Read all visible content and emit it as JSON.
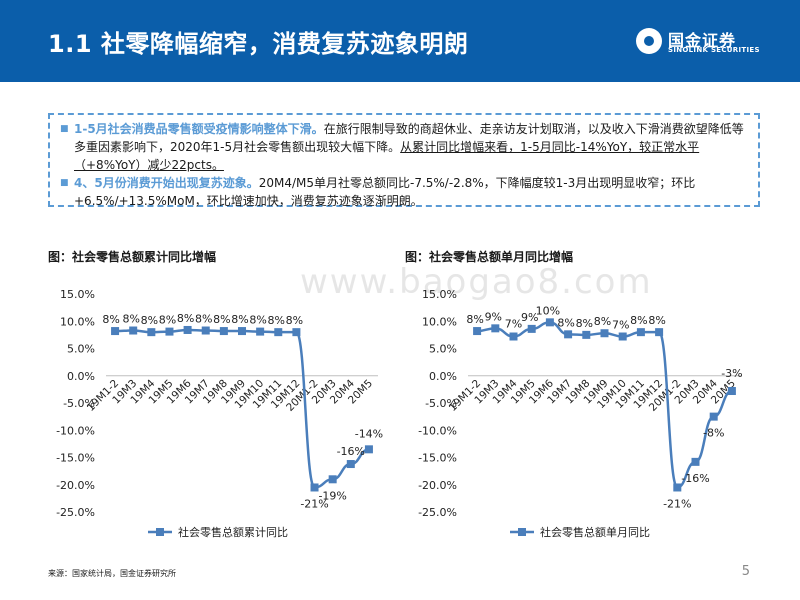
{
  "header": {
    "title": "1.1 社零降幅缩窄，消费复苏迹象明朗",
    "logo_cn": "国金证券",
    "logo_en": "SINOLINK SECURITIES",
    "bg_color": "#0b5eaa"
  },
  "summary": {
    "p1_hl": "1-5月社会消费品零售额受疫情影响整体下滑。",
    "p1_text": "在旅行限制导致的商超休业、走亲访友计划取消，以及收入下滑消费欲望降低等多重因素影响下，2020年1-5月社会零售额出现较大幅下降。",
    "p1_ul": "从累计同比增幅来看，1-5月同比-14%YoY，较正常水平（+8%YoY）减少22pcts。",
    "p2_hl": "4、5月份消费开始出现复苏迹象。",
    "p2_text": "20M4/M5单月社零总额同比-7.5%/-2.8%，下降幅度较1-3月出现明显收窄；环比+6.5%/+13.5%MoM，环比增速加快，消费复苏迹象逐渐明朗。"
  },
  "watermark": "www.baogao8.com",
  "footer": {
    "source": "来源：国家统计局，国金证券研究所",
    "page": "5"
  },
  "chart_data": [
    {
      "type": "line",
      "title": "图：社会零售总额累计同比增幅",
      "categories": [
        "19M1-2",
        "19M3",
        "19M4",
        "19M5",
        "19M6",
        "19M7",
        "19M8",
        "19M9",
        "19M10",
        "19M11",
        "19M12",
        "20M1-2",
        "20M3",
        "20M4",
        "20M5"
      ],
      "series": [
        {
          "name": "社会零售总额累计同比",
          "values": [
            8.2,
            8.3,
            8.0,
            8.1,
            8.4,
            8.3,
            8.2,
            8.2,
            8.1,
            8.0,
            8.0,
            -20.5,
            -19.0,
            -16.2,
            -13.5
          ]
        }
      ],
      "data_labels": [
        "8%",
        "8%",
        "8%",
        "8%",
        "8%",
        "8%",
        "8%",
        "8%",
        "8%",
        "8%",
        "8%",
        "-21%",
        "-19%",
        "-16%",
        "-14%"
      ],
      "ylim": [
        -25,
        15
      ],
      "yticks": [
        "15.0%",
        "10.0%",
        "5.0%",
        "0.0%",
        "-5.0%",
        "-10.0%",
        "-15.0%",
        "-20.0%",
        "-25.0%"
      ],
      "grid": false,
      "legend": "bottom",
      "color": "#4a7ebb"
    },
    {
      "type": "line",
      "title": "图：社会零售总额单月同比增幅",
      "categories": [
        "19M1-2",
        "19M3",
        "19M4",
        "19M5",
        "19M6",
        "19M7",
        "19M8",
        "19M9",
        "19M10",
        "19M11",
        "19M12",
        "20M1-2",
        "20M3",
        "20M4",
        "20M5"
      ],
      "series": [
        {
          "name": "社会零售总额单月同比",
          "values": [
            8.2,
            8.7,
            7.2,
            8.6,
            9.8,
            7.6,
            7.5,
            7.8,
            7.2,
            8.0,
            8.0,
            -20.5,
            -15.8,
            -7.5,
            -2.8
          ]
        }
      ],
      "data_labels": [
        "8%",
        "9%",
        "7%",
        "9%",
        "10%",
        "8%",
        "8%",
        "8%",
        "7%",
        "8%",
        "8%",
        "-21%",
        "-16%",
        "-8%",
        "-3%"
      ],
      "ylim": [
        -25,
        15
      ],
      "yticks": [
        "15.0%",
        "10.0%",
        "5.0%",
        "0.0%",
        "-5.0%",
        "-10.0%",
        "-15.0%",
        "-20.0%",
        "-25.0%"
      ],
      "grid": false,
      "legend": "bottom",
      "color": "#4a7ebb"
    }
  ]
}
